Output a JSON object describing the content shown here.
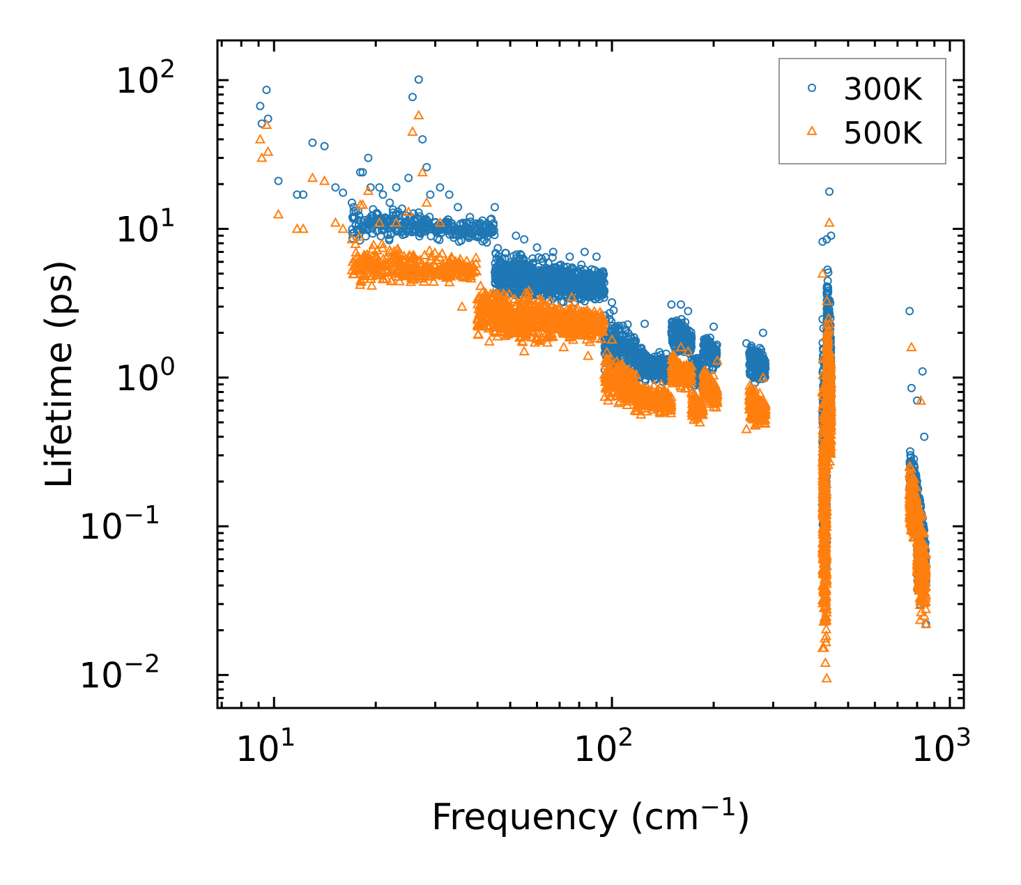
{
  "chart_data": {
    "type": "scatter",
    "title": "",
    "xlabel": "Frequency (cm",
    "xlabel_sup": "−1",
    "xlabel_tail": ")",
    "ylabel": "Lifetime (ps)",
    "xscale": "log",
    "yscale": "log",
    "xlim": [
      6.8,
      1100
    ],
    "ylim": [
      0.006,
      185
    ],
    "x_ticks": [
      {
        "base": "10",
        "exp": "1",
        "value": 10
      },
      {
        "base": "10",
        "exp": "2",
        "value": 100
      },
      {
        "base": "10",
        "exp": "3",
        "value": 1000
      }
    ],
    "y_ticks": [
      {
        "base": "10",
        "exp": "2",
        "value": 100
      },
      {
        "base": "10",
        "exp": "1",
        "value": 10
      },
      {
        "base": "10",
        "exp": "0",
        "value": 1
      },
      {
        "base": "10",
        "exp": "−1",
        "value": 0.1
      },
      {
        "base": "10",
        "exp": "−2",
        "value": 0.01
      }
    ],
    "legend_position": "top-right",
    "series": [
      {
        "name": "300K",
        "marker": "circle",
        "color": "#1f77b4",
        "points": [
          [
            9.1,
            67
          ],
          [
            9.2,
            51
          ],
          [
            9.5,
            86
          ],
          [
            9.6,
            55
          ],
          [
            10.3,
            21
          ],
          [
            11.7,
            17
          ],
          [
            12.2,
            17
          ],
          [
            13.0,
            38
          ],
          [
            14.1,
            36
          ],
          [
            15.2,
            19
          ],
          [
            16.0,
            17.5
          ],
          [
            17.0,
            15
          ],
          [
            17.2,
            14
          ],
          [
            18.0,
            24
          ],
          [
            18.3,
            24
          ],
          [
            19.0,
            30
          ],
          [
            19.3,
            19
          ],
          [
            20.5,
            19
          ],
          [
            21.0,
            17
          ],
          [
            22.0,
            15
          ],
          [
            23.0,
            19
          ],
          [
            25.0,
            22
          ],
          [
            25.7,
            77
          ],
          [
            26.8,
            101
          ],
          [
            27.5,
            40
          ],
          [
            28.3,
            26
          ],
          [
            29.0,
            17
          ],
          [
            31.0,
            19
          ],
          [
            33.0,
            17
          ],
          [
            35.0,
            14
          ],
          [
            38.0,
            12
          ],
          [
            45.0,
            14
          ],
          [
            52.0,
            9
          ],
          [
            55.0,
            8.5
          ],
          [
            60.0,
            7.5
          ],
          [
            67.0,
            7
          ],
          [
            75.0,
            6.5
          ],
          [
            83.0,
            7
          ],
          [
            90.0,
            6.5
          ],
          [
            94.0,
            4.5
          ],
          [
            100.0,
            3.2
          ],
          [
            110.0,
            2.1
          ],
          [
            117.0,
            1.0
          ],
          [
            125.0,
            2.3
          ],
          [
            150.0,
            3.1
          ],
          [
            160.0,
            3.1
          ],
          [
            168.0,
            2.8
          ],
          [
            180.0,
            1.0
          ],
          [
            200.0,
            2.2
          ],
          [
            250.0,
            1.7
          ],
          [
            280.0,
            2.0
          ],
          [
            420.0,
            8.2
          ],
          [
            432.0,
            8.5
          ],
          [
            440.0,
            17.8
          ],
          [
            445.0,
            9.0
          ],
          [
            760.0,
            2.8
          ],
          [
            770.0,
            0.85
          ],
          [
            800.0,
            0.7
          ],
          [
            830.0,
            1.1
          ],
          [
            840.0,
            0.4
          ],
          [
            850.0,
            0.022
          ]
        ],
        "clusters": [
          {
            "xmin": 17,
            "xmax": 45,
            "ylow": 8,
            "yhigh": 15,
            "count": 320
          },
          {
            "xmin": 45,
            "xmax": 95,
            "ylow": 3,
            "yhigh": 8,
            "count": 760
          },
          {
            "xmin": 95,
            "xmax": 118,
            "ylow": 1.0,
            "yhigh": 3.2,
            "count": 220
          },
          {
            "xmin": 118,
            "xmax": 150,
            "ylow": 0.9,
            "yhigh": 1.8,
            "count": 220
          },
          {
            "xmin": 150,
            "xmax": 172,
            "ylow": 1.4,
            "yhigh": 2.8,
            "count": 180
          },
          {
            "xmin": 172,
            "xmax": 186,
            "ylow": 0.75,
            "yhigh": 1.8,
            "count": 100
          },
          {
            "xmin": 186,
            "xmax": 205,
            "ylow": 1.1,
            "yhigh": 2.2,
            "count": 120
          },
          {
            "xmin": 255,
            "xmax": 285,
            "ylow": 0.9,
            "yhigh": 1.9,
            "count": 200
          },
          {
            "xmin": 420,
            "xmax": 432,
            "ylow": 0.03,
            "yhigh": 6,
            "count": 320
          },
          {
            "xmin": 432,
            "xmax": 445,
            "ylow": 0.4,
            "yhigh": 9,
            "count": 320
          },
          {
            "xmin": 760,
            "xmax": 800,
            "ylow": 0.09,
            "yhigh": 0.45,
            "count": 220
          },
          {
            "xmin": 800,
            "xmax": 850,
            "ylow": 0.025,
            "yhigh": 0.25,
            "count": 240
          }
        ]
      },
      {
        "name": "500K",
        "marker": "triangle",
        "color": "#ff7f0e",
        "points": [
          [
            9.1,
            40
          ],
          [
            9.2,
            30
          ],
          [
            9.5,
            50
          ],
          [
            9.6,
            33
          ],
          [
            10.3,
            12.5
          ],
          [
            11.7,
            10
          ],
          [
            12.2,
            10
          ],
          [
            13.0,
            22
          ],
          [
            14.1,
            21
          ],
          [
            15.2,
            11
          ],
          [
            16.0,
            10
          ],
          [
            17.0,
            8.5
          ],
          [
            18.0,
            14.5
          ],
          [
            18.3,
            14.5
          ],
          [
            19.0,
            18
          ],
          [
            20.5,
            11
          ],
          [
            23.0,
            11
          ],
          [
            25.0,
            13
          ],
          [
            25.7,
            45
          ],
          [
            26.8,
            58
          ],
          [
            27.5,
            24
          ],
          [
            28.3,
            15
          ],
          [
            31.0,
            11
          ],
          [
            36.0,
            3.0
          ],
          [
            40.0,
            2.5
          ],
          [
            45.0,
            2.0
          ],
          [
            55.0,
            1.5
          ],
          [
            60.0,
            2.0
          ],
          [
            72.0,
            1.6
          ],
          [
            85.0,
            1.4
          ],
          [
            100.0,
            1.8
          ],
          [
            110.0,
            0.95
          ],
          [
            117.0,
            0.6
          ],
          [
            140.0,
            0.9
          ],
          [
            160.0,
            1.6
          ],
          [
            168.0,
            1.5
          ],
          [
            182.0,
            0.5
          ],
          [
            205.0,
            1.3
          ],
          [
            250.0,
            0.45
          ],
          [
            280.0,
            1.0
          ],
          [
            420.0,
            5.0
          ],
          [
            440.0,
            11.0
          ],
          [
            432.0,
            0.0095
          ],
          [
            770.0,
            1.6
          ],
          [
            820.0,
            0.7
          ],
          [
            840.0,
            0.025
          ],
          [
            850.0,
            0.022
          ]
        ],
        "clusters": [
          {
            "xmin": 17,
            "xmax": 40,
            "ylow": 4,
            "yhigh": 9,
            "count": 320
          },
          {
            "xmin": 40,
            "xmax": 95,
            "ylow": 1.6,
            "yhigh": 4.5,
            "count": 760
          },
          {
            "xmin": 95,
            "xmax": 118,
            "ylow": 0.6,
            "yhigh": 1.8,
            "count": 220
          },
          {
            "xmin": 118,
            "xmax": 150,
            "ylow": 0.55,
            "yhigh": 1.0,
            "count": 220
          },
          {
            "xmin": 150,
            "xmax": 172,
            "ylow": 0.8,
            "yhigh": 1.6,
            "count": 180
          },
          {
            "xmin": 172,
            "xmax": 186,
            "ylow": 0.5,
            "yhigh": 0.9,
            "count": 100
          },
          {
            "xmin": 186,
            "xmax": 205,
            "ylow": 0.6,
            "yhigh": 1.3,
            "count": 120
          },
          {
            "xmin": 255,
            "xmax": 285,
            "ylow": 0.45,
            "yhigh": 1.0,
            "count": 200
          },
          {
            "xmin": 420,
            "xmax": 432,
            "ylow": 0.01,
            "yhigh": 3.5,
            "count": 320
          },
          {
            "xmin": 432,
            "xmax": 445,
            "ylow": 0.2,
            "yhigh": 6,
            "count": 320
          },
          {
            "xmin": 760,
            "xmax": 800,
            "ylow": 0.07,
            "yhigh": 0.35,
            "count": 220
          },
          {
            "xmin": 800,
            "xmax": 850,
            "ylow": 0.022,
            "yhigh": 0.2,
            "count": 240
          }
        ]
      }
    ]
  }
}
